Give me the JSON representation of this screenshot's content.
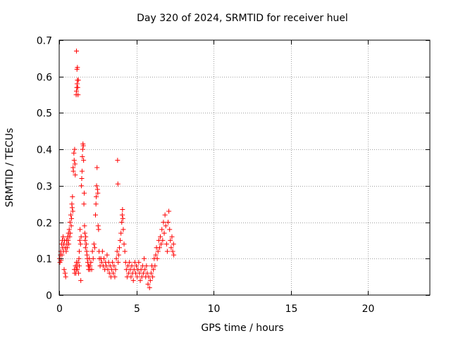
{
  "chart_data": {
    "type": "scatter",
    "title": "Day 320 of 2024, SRMTID for receiver huel",
    "xlabel": "GPS time / hours",
    "ylabel": "SRMTID / TECUs",
    "xlim": [
      0,
      24
    ],
    "ylim": [
      0,
      0.7
    ],
    "xticks": [
      0,
      5,
      10,
      15,
      20
    ],
    "yticks": [
      0,
      0.1,
      0.2,
      0.3,
      0.4,
      0.5,
      0.6,
      0.7
    ],
    "grid": true,
    "marker": "+",
    "color": "#ff0000",
    "series": [
      {
        "name": "SRMTID",
        "points": [
          [
            0.02,
            0.1
          ],
          [
            0.05,
            0.09
          ],
          [
            0.08,
            0.11
          ],
          [
            0.1,
            0.12
          ],
          [
            0.12,
            0.095
          ],
          [
            0.15,
            0.14
          ],
          [
            0.18,
            0.11
          ],
          [
            0.2,
            0.15
          ],
          [
            0.22,
            0.13
          ],
          [
            0.25,
            0.16
          ],
          [
            0.28,
            0.12
          ],
          [
            0.3,
            0.14
          ],
          [
            0.32,
            0.07
          ],
          [
            0.35,
            0.15
          ],
          [
            0.38,
            0.06
          ],
          [
            0.4,
            0.13
          ],
          [
            0.42,
            0.05
          ],
          [
            0.45,
            0.12
          ],
          [
            0.48,
            0.15
          ],
          [
            0.5,
            0.14
          ],
          [
            0.52,
            0.13
          ],
          [
            0.55,
            0.16
          ],
          [
            0.58,
            0.15
          ],
          [
            0.6,
            0.17
          ],
          [
            0.62,
            0.14
          ],
          [
            0.65,
            0.18
          ],
          [
            0.68,
            0.16
          ],
          [
            0.7,
            0.2
          ],
          [
            0.72,
            0.17
          ],
          [
            0.75,
            0.22
          ],
          [
            0.78,
            0.19
          ],
          [
            0.8,
            0.21
          ],
          [
            0.82,
            0.25
          ],
          [
            0.84,
            0.24
          ],
          [
            0.86,
            0.27
          ],
          [
            0.88,
            0.23
          ],
          [
            0.9,
            0.35
          ],
          [
            0.92,
            0.34
          ],
          [
            0.95,
            0.39
          ],
          [
            0.97,
            0.37
          ],
          [
            1.0,
            0.4
          ],
          [
            1.02,
            0.36
          ],
          [
            1.04,
            0.33
          ],
          [
            0.98,
            0.07
          ],
          [
            1.0,
            0.06
          ],
          [
            1.05,
            0.08
          ],
          [
            1.08,
            0.06
          ],
          [
            1.1,
            0.07
          ],
          [
            1.12,
            0.09
          ],
          [
            1.15,
            0.08
          ],
          [
            1.18,
            0.07
          ],
          [
            1.22,
            0.09
          ],
          [
            1.25,
            0.06
          ],
          [
            1.28,
            0.1
          ],
          [
            1.3,
            0.08
          ],
          [
            1.1,
            0.55
          ],
          [
            1.12,
            0.56
          ],
          [
            1.14,
            0.57
          ],
          [
            1.16,
            0.58
          ],
          [
            1.18,
            0.59
          ],
          [
            1.2,
            0.57
          ],
          [
            1.22,
            0.55
          ],
          [
            1.24,
            0.59
          ],
          [
            1.15,
            0.62
          ],
          [
            1.18,
            0.625
          ],
          [
            1.12,
            0.67
          ],
          [
            1.3,
            0.12
          ],
          [
            1.33,
            0.15
          ],
          [
            1.35,
            0.18
          ],
          [
            1.38,
            0.14
          ],
          [
            1.4,
            0.04
          ],
          [
            1.42,
            0.16
          ],
          [
            1.44,
            0.3
          ],
          [
            1.46,
            0.32
          ],
          [
            1.48,
            0.34
          ],
          [
            1.5,
            0.38
          ],
          [
            1.52,
            0.4
          ],
          [
            1.54,
            0.415
          ],
          [
            1.56,
            0.41
          ],
          [
            1.58,
            0.37
          ],
          [
            1.6,
            0.25
          ],
          [
            1.62,
            0.28
          ],
          [
            1.64,
            0.19
          ],
          [
            1.66,
            0.17
          ],
          [
            1.68,
            0.15
          ],
          [
            1.7,
            0.13
          ],
          [
            1.72,
            0.16
          ],
          [
            1.75,
            0.14
          ],
          [
            1.78,
            0.12
          ],
          [
            1.8,
            0.11
          ],
          [
            1.82,
            0.1
          ],
          [
            1.85,
            0.09
          ],
          [
            1.88,
            0.08
          ],
          [
            1.9,
            0.07
          ],
          [
            1.92,
            0.08
          ],
          [
            1.95,
            0.1
          ],
          [
            1.98,
            0.07
          ],
          [
            2.0,
            0.08
          ],
          [
            2.05,
            0.09
          ],
          [
            2.1,
            0.07
          ],
          [
            2.15,
            0.12
          ],
          [
            2.2,
            0.1
          ],
          [
            2.25,
            0.14
          ],
          [
            2.3,
            0.13
          ],
          [
            2.35,
            0.22
          ],
          [
            2.38,
            0.25
          ],
          [
            2.4,
            0.27
          ],
          [
            2.42,
            0.3
          ],
          [
            2.45,
            0.35
          ],
          [
            2.48,
            0.29
          ],
          [
            2.5,
            0.28
          ],
          [
            2.52,
            0.19
          ],
          [
            2.55,
            0.18
          ],
          [
            2.58,
            0.12
          ],
          [
            2.6,
            0.1
          ],
          [
            2.65,
            0.08
          ],
          [
            2.7,
            0.1
          ],
          [
            2.75,
            0.09
          ],
          [
            2.8,
            0.12
          ],
          [
            2.85,
            0.08
          ],
          [
            2.9,
            0.1
          ],
          [
            2.95,
            0.07
          ],
          [
            3.0,
            0.09
          ],
          [
            3.05,
            0.08
          ],
          [
            3.1,
            0.11
          ],
          [
            3.15,
            0.07
          ],
          [
            3.2,
            0.09
          ],
          [
            3.25,
            0.06
          ],
          [
            3.3,
            0.08
          ],
          [
            3.35,
            0.05
          ],
          [
            3.4,
            0.07
          ],
          [
            3.45,
            0.09
          ],
          [
            3.5,
            0.06
          ],
          [
            3.55,
            0.08
          ],
          [
            3.6,
            0.05
          ],
          [
            3.65,
            0.07
          ],
          [
            3.7,
            0.1
          ],
          [
            3.75,
            0.12
          ],
          [
            3.78,
            0.37
          ],
          [
            3.8,
            0.305
          ],
          [
            3.82,
            0.09
          ],
          [
            3.85,
            0.11
          ],
          [
            3.9,
            0.13
          ],
          [
            3.95,
            0.15
          ],
          [
            4.0,
            0.17
          ],
          [
            4.05,
            0.2
          ],
          [
            4.08,
            0.22
          ],
          [
            4.1,
            0.235
          ],
          [
            4.12,
            0.21
          ],
          [
            4.15,
            0.18
          ],
          [
            4.2,
            0.14
          ],
          [
            4.25,
            0.12
          ],
          [
            4.3,
            0.09
          ],
          [
            4.35,
            0.07
          ],
          [
            4.4,
            0.05
          ],
          [
            4.45,
            0.08
          ],
          [
            4.5,
            0.06
          ],
          [
            4.55,
            0.09
          ],
          [
            4.6,
            0.07
          ],
          [
            4.65,
            0.05
          ],
          [
            4.7,
            0.08
          ],
          [
            4.75,
            0.06
          ],
          [
            4.8,
            0.04
          ],
          [
            4.85,
            0.07
          ],
          [
            4.9,
            0.09
          ],
          [
            4.95,
            0.06
          ],
          [
            5.0,
            0.08
          ],
          [
            5.05,
            0.05
          ],
          [
            5.1,
            0.07
          ],
          [
            5.15,
            0.09
          ],
          [
            5.2,
            0.06
          ],
          [
            5.25,
            0.04
          ],
          [
            5.3,
            0.07
          ],
          [
            5.35,
            0.05
          ],
          [
            5.4,
            0.08
          ],
          [
            5.45,
            0.06
          ],
          [
            5.5,
            0.1
          ],
          [
            5.55,
            0.07
          ],
          [
            5.6,
            0.05
          ],
          [
            5.65,
            0.08
          ],
          [
            5.7,
            0.06
          ],
          [
            5.75,
            0.03
          ],
          [
            5.8,
            0.05
          ],
          [
            5.85,
            0.02
          ],
          [
            5.9,
            0.04
          ],
          [
            5.95,
            0.06
          ],
          [
            6.0,
            0.08
          ],
          [
            6.05,
            0.05
          ],
          [
            6.1,
            0.07
          ],
          [
            6.15,
            0.1
          ],
          [
            6.2,
            0.08
          ],
          [
            6.25,
            0.11
          ],
          [
            6.3,
            0.13
          ],
          [
            6.35,
            0.1
          ],
          [
            6.4,
            0.12
          ],
          [
            6.45,
            0.15
          ],
          [
            6.5,
            0.13
          ],
          [
            6.55,
            0.16
          ],
          [
            6.6,
            0.14
          ],
          [
            6.65,
            0.18
          ],
          [
            6.7,
            0.15
          ],
          [
            6.75,
            0.2
          ],
          [
            6.8,
            0.17
          ],
          [
            6.85,
            0.22
          ],
          [
            6.9,
            0.19
          ],
          [
            6.95,
            0.14
          ],
          [
            7.0,
            0.12
          ],
          [
            7.05,
            0.2
          ],
          [
            7.1,
            0.23
          ],
          [
            7.15,
            0.18
          ],
          [
            7.2,
            0.15
          ],
          [
            7.25,
            0.13
          ],
          [
            7.3,
            0.16
          ],
          [
            7.35,
            0.12
          ],
          [
            7.4,
            0.14
          ],
          [
            7.42,
            0.11
          ]
        ]
      }
    ]
  }
}
